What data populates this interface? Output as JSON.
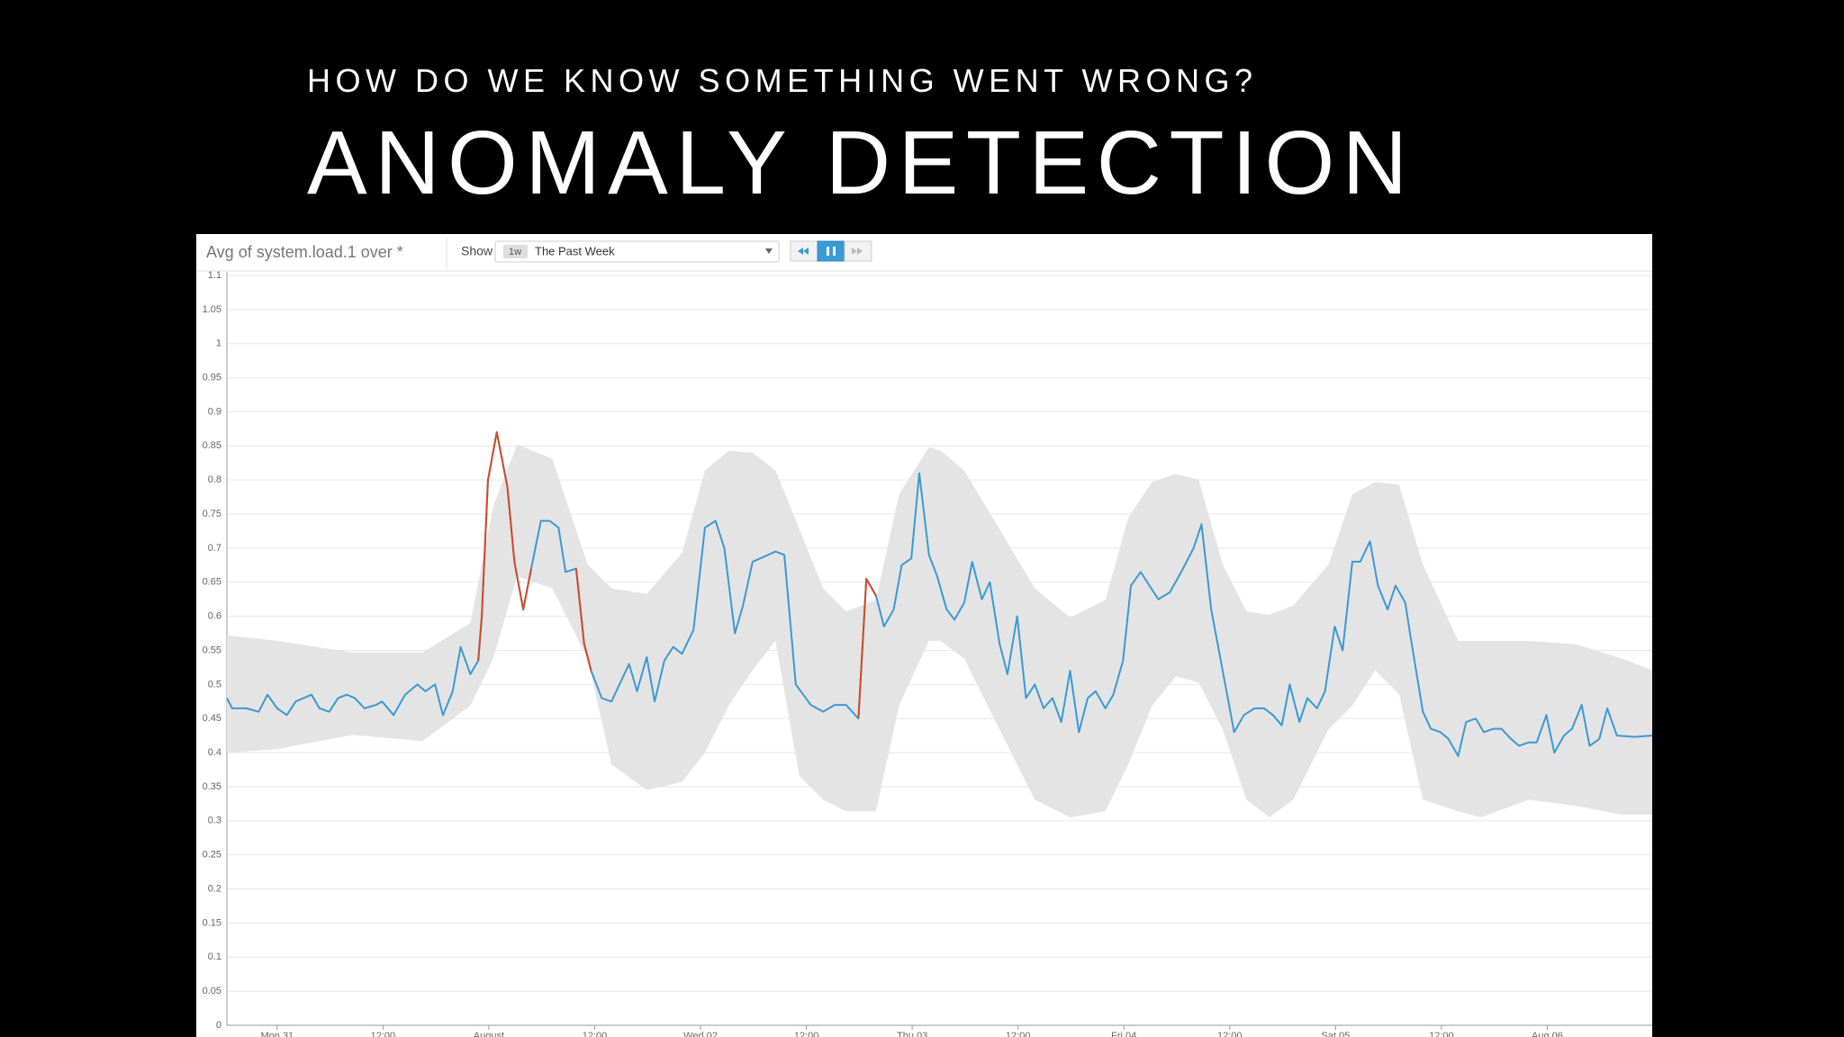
{
  "slide": {
    "subtitle": "HOW DO WE KNOW SOMETHING WENT WRONG?",
    "title": "ANOMALY DETECTION"
  },
  "toolbar": {
    "query": "Avg of system.load.1 over *",
    "show": "Show",
    "range_badge": "1w",
    "range": "The Past Week"
  },
  "chart_data": {
    "type": "line",
    "xlim": [
      -5.7,
      155.9
    ],
    "xticks": [
      {
        "value": 0,
        "label": "Mon 31"
      },
      {
        "value": 12,
        "label": "12:00"
      },
      {
        "value": 24,
        "label": "August"
      },
      {
        "value": 36,
        "label": "12:00"
      },
      {
        "value": 48,
        "label": "Wed 02"
      },
      {
        "value": 60,
        "label": "12:00"
      },
      {
        "value": 72,
        "label": "Thu 03"
      },
      {
        "value": 84,
        "label": "12:00"
      },
      {
        "value": 96,
        "label": "Fri 04"
      },
      {
        "value": 108,
        "label": "12:00"
      },
      {
        "value": 120,
        "label": "Sat 05"
      },
      {
        "value": 132,
        "label": "12:00"
      },
      {
        "value": 144,
        "label": "Aug 06"
      }
    ],
    "ylim": [
      0,
      1.1
    ],
    "yticks": [
      0,
      0.05,
      0.1,
      0.15,
      0.2,
      0.25,
      0.3,
      0.35,
      0.4,
      0.45,
      0.5,
      0.55,
      0.6,
      0.65,
      0.7,
      0.75,
      0.8,
      0.85,
      0.9,
      0.95,
      1,
      1.05,
      1.1
    ],
    "grid": true,
    "band": {
      "color": "#e4e4e4",
      "x": [
        -5.7,
        0,
        8.5,
        16.5,
        21.9,
        24.5,
        27.2,
        31.2,
        35.2,
        37.9,
        41.9,
        45.9,
        48.5,
        51.2,
        53.9,
        56.5,
        59.2,
        61.9,
        64.5,
        67.9,
        70.5,
        73.9,
        75.2,
        77.9,
        81.9,
        85.9,
        89.9,
        93.9,
        96.5,
        99.2,
        101.9,
        104.5,
        107.2,
        109.9,
        112.5,
        115.2,
        119.2,
        121.9,
        124.5,
        127.2,
        129.9,
        133.9,
        136.5,
        141.9,
        147.2,
        152.5,
        155.9
      ],
      "upper": [
        0.572,
        0.564,
        0.547,
        0.547,
        0.59,
        0.762,
        0.852,
        0.831,
        0.676,
        0.641,
        0.633,
        0.693,
        0.814,
        0.843,
        0.84,
        0.814,
        0.728,
        0.641,
        0.607,
        0.624,
        0.779,
        0.848,
        0.843,
        0.814,
        0.728,
        0.641,
        0.598,
        0.624,
        0.745,
        0.797,
        0.809,
        0.8,
        0.676,
        0.607,
        0.602,
        0.616,
        0.676,
        0.779,
        0.797,
        0.793,
        0.676,
        0.564,
        0.564,
        0.564,
        0.559,
        0.538,
        0.521
      ],
      "lower": [
        0.4,
        0.405,
        0.426,
        0.417,
        0.469,
        0.538,
        0.659,
        0.641,
        0.538,
        0.383,
        0.345,
        0.357,
        0.4,
        0.469,
        0.521,
        0.564,
        0.366,
        0.331,
        0.314,
        0.314,
        0.469,
        0.564,
        0.564,
        0.538,
        0.434,
        0.331,
        0.305,
        0.314,
        0.383,
        0.469,
        0.512,
        0.503,
        0.434,
        0.331,
        0.305,
        0.331,
        0.434,
        0.469,
        0.521,
        0.486,
        0.331,
        0.314,
        0.305,
        0.331,
        0.322,
        0.309,
        0.309
      ]
    },
    "x": [
      -5.7,
      -5.1,
      -3.5,
      -2.1,
      -1.1,
      0,
      1.1,
      2.1,
      3.9,
      4.8,
      5.9,
      6.9,
      7.9,
      8.8,
      9.9,
      11.2,
      11.9,
      13.2,
      14.5,
      15.9,
      16.8,
      17.9,
      18.8,
      19.9,
      20.8,
      21.9,
      22.8,
      23.2,
      23.9,
      24.9,
      26.1,
      26.9,
      27.9,
      28.8,
      29.9,
      30.9,
      31.9,
      32.7,
      33.9,
      34.8,
      35.6,
      36.8,
      37.9,
      39.9,
      40.8,
      41.9,
      42.8,
      43.9,
      44.9,
      45.9,
      47.2,
      48.5,
      49.7,
      50.7,
      51.9,
      52.8,
      53.9,
      56.5,
      57.5,
      58.8,
      60.5,
      61.9,
      63.2,
      64.5,
      65.9,
      66.8,
      67.9,
      68.8,
      69.9,
      70.8,
      71.9,
      72.8,
      73.9,
      74.8,
      75.9,
      76.8,
      77.9,
      78.8,
      79.9,
      80.8,
      81.9,
      82.8,
      83.9,
      84.9,
      85.9,
      86.9,
      87.9,
      88.9,
      89.9,
      90.9,
      91.9,
      92.8,
      93.9,
      94.8,
      95.9,
      96.8,
      97.9,
      99.9,
      101.2,
      102.5,
      103.9,
      104.8,
      105.9,
      107.2,
      108.5,
      109.6,
      110.8,
      111.9,
      112.9,
      113.9,
      114.8,
      115.9,
      116.8,
      117.9,
      118.8,
      119.9,
      120.8,
      121.9,
      122.8,
      123.9,
      124.8,
      125.9,
      126.8,
      127.9,
      128.5,
      129.9,
      130.8,
      131.9,
      132.8,
      133.9,
      134.8,
      135.9,
      136.8,
      137.9,
      138.8,
      139.9,
      140.8,
      141.9,
      142.8,
      143.9,
      144.8,
      145.9,
      146.8,
      147.9,
      148.8,
      149.9,
      150.8,
      151.9,
      153.9,
      155.9
    ],
    "series": [
      {
        "color": "#3a9ad2",
        "values": [
          0.48,
          0.465,
          0.465,
          0.46,
          0.485,
          0.465,
          0.455,
          0.475,
          0.485,
          0.465,
          0.46,
          0.48,
          0.485,
          0.48,
          0.465,
          0.47,
          0.475,
          0.455,
          0.485,
          0.5,
          0.49,
          0.5,
          0.455,
          0.49,
          0.555,
          0.515,
          0.535,
          0.6,
          0.8,
          0.87,
          0.79,
          0.68,
          0.61,
          0.67,
          0.74,
          0.74,
          0.73,
          0.665,
          0.67,
          0.56,
          0.52,
          0.48,
          0.475,
          0.53,
          0.49,
          0.54,
          0.475,
          0.535,
          0.555,
          0.545,
          0.58,
          0.73,
          0.74,
          0.7,
          0.575,
          0.615,
          0.68,
          0.695,
          0.69,
          0.5,
          0.47,
          0.46,
          0.47,
          0.47,
          0.45,
          0.655,
          0.63,
          0.585,
          0.61,
          0.675,
          0.685,
          0.81,
          0.69,
          0.66,
          0.61,
          0.595,
          0.62,
          0.68,
          0.625,
          0.65,
          0.56,
          0.515,
          0.6,
          0.48,
          0.5,
          0.465,
          0.48,
          0.445,
          0.52,
          0.43,
          0.48,
          0.49,
          0.465,
          0.485,
          0.535,
          0.645,
          0.665,
          0.625,
          0.635,
          0.665,
          0.7,
          0.735,
          0.61,
          0.52,
          0.43,
          0.455,
          0.465,
          0.465,
          0.455,
          0.44,
          0.5,
          0.445,
          0.48,
          0.465,
          0.49,
          0.585,
          0.55,
          0.68,
          0.68,
          0.71,
          0.645,
          0.61,
          0.645,
          0.62,
          0.57,
          0.46,
          0.435,
          0.43,
          0.42,
          0.395,
          0.445,
          0.45,
          0.43,
          0.435,
          0.435,
          0.42,
          0.41,
          0.415,
          0.415,
          0.455,
          0.4,
          0.425,
          0.435,
          0.47,
          0.41,
          0.42,
          0.465,
          0.425,
          0.423,
          0.425
        ]
      },
      {
        "color": "#d24a2b",
        "values": [
          null,
          null,
          null,
          null,
          null,
          null,
          null,
          null,
          null,
          null,
          null,
          null,
          null,
          null,
          null,
          null,
          null,
          null,
          null,
          null,
          null,
          null,
          null,
          null,
          null,
          null,
          0.535,
          0.6,
          0.8,
          0.87,
          0.79,
          0.68,
          0.61,
          0.67,
          null,
          null,
          null,
          null,
          0.67,
          0.56,
          0.52,
          null,
          null,
          null,
          null,
          null,
          null,
          null,
          null,
          null,
          null,
          null,
          null,
          null,
          null,
          null,
          null,
          null,
          null,
          null,
          null,
          null,
          null,
          null,
          0.45,
          0.655,
          0.63,
          null,
          null,
          null,
          null,
          null,
          null,
          null,
          null,
          null,
          null,
          null,
          null,
          null,
          null,
          null,
          null,
          null,
          null,
          null,
          null,
          null,
          null,
          null,
          null,
          null,
          null,
          null,
          null,
          null,
          null,
          null,
          null,
          null,
          null,
          null,
          null,
          null,
          null,
          null,
          null,
          null,
          null,
          null,
          null,
          null,
          null,
          null,
          null,
          null,
          null,
          null,
          null,
          null,
          null,
          null,
          null,
          null,
          null,
          null,
          null,
          null,
          null,
          null,
          null,
          null,
          null,
          null,
          null,
          null,
          null,
          null,
          null,
          null,
          null,
          null,
          null,
          null,
          null,
          null,
          null,
          null,
          null,
          null
        ]
      }
    ]
  }
}
